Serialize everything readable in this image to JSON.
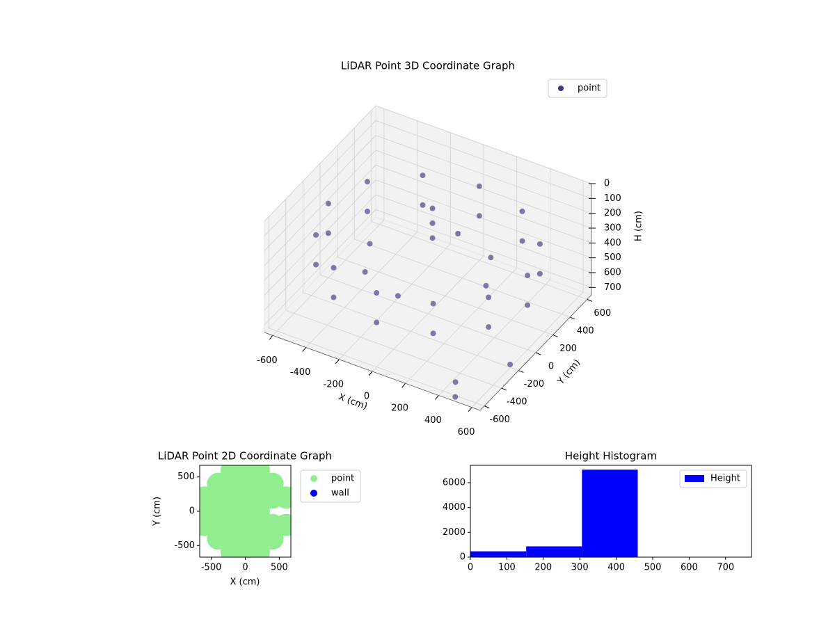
{
  "chart_data": [
    {
      "type": "scatter3d",
      "title": "LiDAR Point 3D Coordinate Graph",
      "xlabel": "X (cm)",
      "ylabel": "Y (cm)",
      "zlabel": "H (cm)",
      "xlim": [
        -650,
        650
      ],
      "ylim": [
        -650,
        650
      ],
      "zlim": [
        0,
        750
      ],
      "z_inverted": true,
      "xticks": [
        -600,
        -400,
        -200,
        0,
        200,
        400,
        600
      ],
      "yticks": [
        -600,
        -400,
        -200,
        0,
        200,
        400,
        600
      ],
      "zticks": [
        0,
        100,
        200,
        300,
        400,
        500,
        600,
        700
      ],
      "legend": "upper right",
      "grid": true,
      "series": [
        {
          "name": "point",
          "color": "#46327e",
          "x": [
            600,
            600,
            520,
            520,
            300,
            300,
            0,
            0,
            -300,
            -300,
            -520,
            -520,
            -600,
            -600,
            -520,
            -520,
            -300,
            -300,
            0,
            0,
            300,
            300,
            520,
            520,
            350,
            0,
            -350,
            0,
            250,
            -250,
            -50,
            -50,
            -50,
            450,
            500,
            650
          ],
          "y": [
            0,
            0,
            300,
            300,
            520,
            520,
            600,
            600,
            520,
            520,
            300,
            300,
            0,
            0,
            -300,
            -300,
            -520,
            -520,
            -600,
            -600,
            -520,
            -520,
            -300,
            -300,
            0,
            350,
            0,
            -350,
            250,
            -250,
            150,
            150,
            150,
            -550,
            -650,
            -300
          ],
          "z": [
            250,
            450,
            250,
            450,
            250,
            450,
            250,
            450,
            250,
            450,
            250,
            450,
            250,
            450,
            250,
            450,
            250,
            450,
            250,
            450,
            250,
            450,
            250,
            450,
            420,
            420,
            420,
            420,
            420,
            420,
            150,
            250,
            350,
            700,
            720,
            650
          ]
        }
      ]
    },
    {
      "type": "scatter",
      "title": "LiDAR Point 2D Coordinate Graph",
      "xlabel": "X (cm)",
      "ylabel": "Y (cm)",
      "xlim": [
        -670,
        670
      ],
      "ylim": [
        -670,
        670
      ],
      "xticks": [
        -500,
        0,
        500
      ],
      "yticks": [
        -500,
        0,
        500
      ],
      "legend": "outside upper right",
      "series": [
        {
          "name": "point",
          "color": "#90ee90",
          "x": [
            -200,
            0,
            200,
            -400,
            -200,
            0,
            200,
            400,
            -600,
            -400,
            -200,
            0,
            200,
            400,
            600,
            -600,
            -400,
            -200,
            0,
            200,
            -600,
            -400,
            -200,
            0,
            200,
            400,
            600,
            -400,
            -200,
            0,
            200,
            400,
            -200,
            0,
            200
          ],
          "y": [
            600,
            600,
            600,
            400,
            400,
            400,
            400,
            400,
            200,
            200,
            200,
            200,
            200,
            200,
            200,
            0,
            0,
            0,
            0,
            0,
            -200,
            -200,
            -200,
            -200,
            -200,
            -200,
            -200,
            -400,
            -400,
            -400,
            -400,
            -400,
            -600,
            -600,
            -600
          ]
        },
        {
          "name": "wall",
          "color": "#0000ff",
          "x": [],
          "y": []
        }
      ]
    },
    {
      "type": "histogram",
      "title": "Height Histogram",
      "bins": [
        0,
        153,
        306,
        459,
        612,
        765
      ],
      "values": [
        470,
        870,
        7050,
        0,
        0
      ],
      "xlim": [
        0,
        771
      ],
      "ylim": [
        0,
        7400
      ],
      "xticks": [
        0,
        100,
        200,
        300,
        400,
        500,
        600,
        700
      ],
      "yticks": [
        0,
        2000,
        4000,
        6000
      ],
      "legend": "upper right",
      "series_name": "Height",
      "color": "#0000ff"
    }
  ]
}
